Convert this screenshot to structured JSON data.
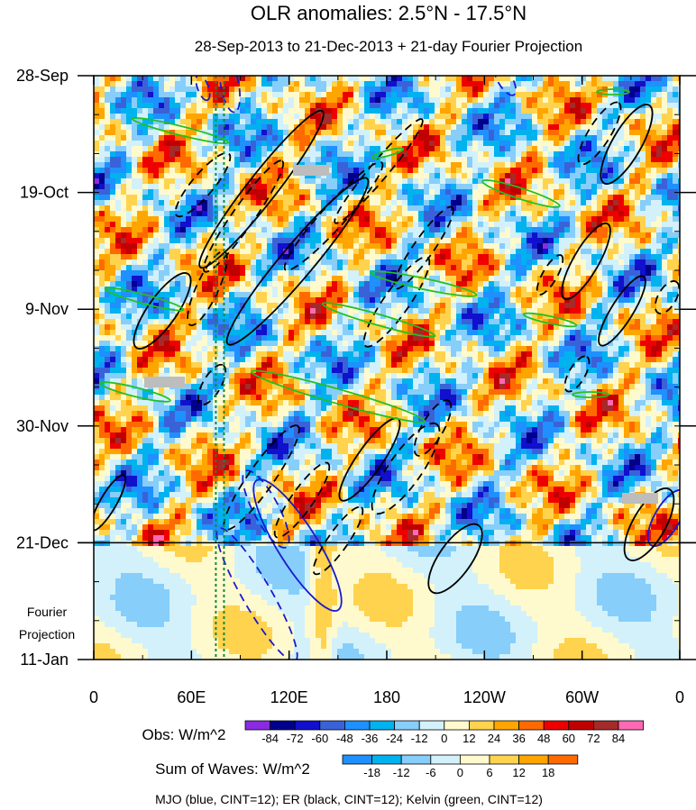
{
  "chart_data": {
    "type": "heatmap",
    "title": "OLR anomalies: 2.5°N - 17.5°N",
    "subtitle": "28-Sep-2013 to 21-Dec-2013 + 21-day Fourier Projection",
    "x_tick_labels": [
      "0",
      "60E",
      "120E",
      "180",
      "120W",
      "60W",
      "0"
    ],
    "x_ticks_deg_east": [
      0,
      60,
      120,
      180,
      240,
      300,
      360
    ],
    "y_tick_labels": [
      "28-Sep",
      "19-Oct",
      "9-Nov",
      "30-Nov",
      "21-Dec",
      "11-Jan"
    ],
    "y_ticks_day": [
      0,
      21,
      42,
      63,
      84,
      105
    ],
    "observed_end_day": 84,
    "projection_label_line1": "Fourier",
    "projection_label_line2": "Projection",
    "obs_colorbar": {
      "label": "Obs: W/m^2",
      "levels": [
        "-84",
        "-72",
        "-60",
        "-48",
        "-36",
        "-24",
        "-12",
        "0",
        "12",
        "24",
        "36",
        "48",
        "60",
        "72",
        "84"
      ],
      "colors": [
        "#8a2be2",
        "#00008b",
        "#1010cd",
        "#3a62d8",
        "#1e90ff",
        "#00b2ee",
        "#87cefa",
        "#d2f1fb",
        "#fffacd",
        "#ffd34d",
        "#ffa500",
        "#ff6a00",
        "#ee0000",
        "#c00000",
        "#a52a2a",
        "#ff69b4"
      ]
    },
    "waves_colorbar": {
      "label": "Sum of Waves: W/m^2",
      "levels": [
        "-18",
        "-12",
        "-6",
        "0",
        "6",
        "12",
        "18"
      ],
      "colors": [
        "#1e90ff",
        "#00b2ee",
        "#87cefa",
        "#d2f1fb",
        "#fffacd",
        "#ffd34d",
        "#ffa500",
        "#ff6a00"
      ]
    },
    "footnote": "MJO (blue, CINT=12); ER (black, CINT=12); Kelvin (green, CINT=12)",
    "vertical_reference_lines_deg": [
      75,
      80
    ],
    "contours": {
      "mjo": {
        "name": "MJO",
        "color": "#1a1acd",
        "cint": 12
      },
      "er": {
        "name": "ER",
        "color": "#000000",
        "cint": 12
      },
      "kelvin": {
        "name": "Kelvin",
        "color": "#22c022",
        "cint": 12
      }
    }
  }
}
